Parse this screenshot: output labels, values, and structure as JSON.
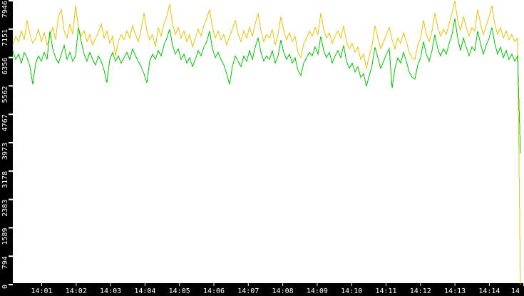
{
  "chart_data": {
    "type": "line",
    "title": "",
    "x_axis": {
      "tick_labels": [
        "14:01",
        "14:02",
        "14:03",
        "14:04",
        "14:05",
        "14:06",
        "14:07",
        "14:08",
        "14:09",
        "14:10",
        "14:11",
        "14:12",
        "14:13",
        "14:14"
      ],
      "edge_label": "14",
      "x_start": "14:00",
      "x_end": "14:15"
    },
    "y_axis": {
      "min": 0,
      "max": 7946,
      "ticks": [
        0,
        794,
        1589,
        2383,
        3178,
        3973,
        4767,
        5562,
        6356,
        7151,
        7946
      ]
    },
    "grid": false,
    "legend": "none",
    "colors": {
      "background": "#ffffff",
      "axis_bar": "#000000",
      "axis_text": "#ffffff",
      "series_yellow": "#f2c100",
      "series_green": "#00cc00"
    },
    "series": [
      {
        "name": "series-yellow",
        "color": "#f2c100",
        "values": [
          6700,
          6950,
          6800,
          7100,
          6850,
          7400,
          7000,
          6750,
          6900,
          7150,
          6800,
          7050,
          6700,
          6950,
          7200,
          6850,
          7500,
          7700,
          7100,
          6900,
          7300,
          7000,
          7800,
          7200,
          6950,
          7100,
          6800,
          7000,
          6700,
          6900,
          7050,
          7300,
          6900,
          7100,
          6750,
          6950,
          6400,
          6800,
          7000,
          6850,
          7100,
          6900,
          7250,
          7000,
          6800,
          7150,
          7600,
          7100,
          6850,
          7000,
          6650,
          7200,
          6950,
          7300,
          7500,
          7850,
          7300,
          7000,
          7200,
          6900,
          7100,
          6800,
          7000,
          6650,
          6900,
          7150,
          6950,
          7250,
          7450,
          7700,
          7200,
          6900,
          7100,
          6850,
          7000,
          6700,
          6950,
          7150,
          7400,
          7000,
          6800,
          7100,
          6900,
          7200,
          6950,
          7300,
          7600,
          7100,
          6800,
          7000,
          6900,
          7150,
          6700,
          7000,
          7500,
          7100,
          6850,
          7050,
          6800,
          6950,
          6500,
          6350,
          6750,
          6900,
          7100,
          6950,
          7200,
          7000,
          7600,
          7150,
          6900,
          7050,
          6750,
          6950,
          7100,
          6900,
          7250,
          6800,
          6600,
          6750,
          6500,
          6650,
          6300,
          6450,
          6050,
          6400,
          6700,
          7250,
          6900,
          6600,
          6800,
          7000,
          7200,
          6850,
          6600,
          6900,
          6750,
          7050,
          6800,
          6500,
          6350,
          6300,
          6700,
          6900,
          7400,
          7000,
          6800,
          7100,
          7600,
          7200,
          6950,
          7150,
          7000,
          7300,
          7600,
          7946,
          7400,
          7100,
          7500,
          7200,
          6950,
          7200,
          7100,
          7700,
          7300,
          7000,
          7250,
          7500,
          7800,
          7300,
          7000,
          7200,
          6900,
          7100,
          6850,
          7000,
          6800,
          6900,
          0
        ]
      },
      {
        "name": "series-green",
        "color": "#00cc00",
        "values": [
          6550,
          6300,
          6450,
          6200,
          6500,
          6350,
          6100,
          5600,
          6200,
          6400,
          6250,
          6500,
          6300,
          7100,
          6600,
          6350,
          6200,
          6450,
          6700,
          6300,
          6500,
          6250,
          6400,
          7200,
          6800,
          6450,
          6250,
          6500,
          6300,
          6150,
          6400,
          6250,
          6000,
          5650,
          6300,
          6500,
          6250,
          6400,
          6200,
          6350,
          6500,
          6300,
          6600,
          6400,
          6250,
          6100,
          5900,
          5650,
          6250,
          6450,
          6300,
          6550,
          6400,
          6700,
          6900,
          7150,
          6700,
          6450,
          6600,
          6300,
          6450,
          6200,
          6350,
          6100,
          6300,
          6550,
          6400,
          6650,
          6800,
          7100,
          6600,
          6350,
          6500,
          6300,
          6150,
          5900,
          5600,
          6100,
          6400,
          6250,
          6100,
          6400,
          6250,
          6550,
          6300,
          6650,
          6900,
          6500,
          6250,
          6400,
          6300,
          6550,
          6200,
          6400,
          6850,
          6500,
          6300,
          6450,
          6200,
          6350,
          6000,
          5850,
          6200,
          6350,
          6500,
          6400,
          6650,
          6450,
          6950,
          6550,
          6350,
          6500,
          6200,
          6400,
          6550,
          6350,
          6700,
          6250,
          6050,
          6200,
          5950,
          6100,
          5800,
          5900,
          5550,
          5850,
          6150,
          6650,
          6350,
          6050,
          6250,
          6450,
          6600,
          5500,
          6050,
          6350,
          6200,
          6500,
          6250,
          5950,
          5800,
          5750,
          6150,
          6350,
          6800,
          6450,
          6250,
          6550,
          7000,
          6600,
          6400,
          6600,
          6450,
          6750,
          7000,
          7450,
          6900,
          6550,
          6900,
          6650,
          6400,
          6650,
          6550,
          7100,
          6750,
          6450,
          6700,
          6900,
          7200,
          6750,
          6450,
          6650,
          6350,
          6550,
          6300,
          6450,
          6250,
          6400,
          3675
        ]
      }
    ]
  }
}
